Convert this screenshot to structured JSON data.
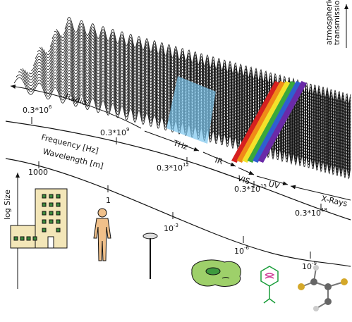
{
  "transmission_label": [
    "atmospheric",
    "transmission"
  ],
  "bands": [
    "Radio",
    "THz",
    "IR",
    "VIS",
    "UV",
    "X-Rays"
  ],
  "frequency_axis": {
    "title": "Frequency [Hz]",
    "ticks": [
      {
        "base": "0.3*10",
        "exp": "6"
      },
      {
        "base": "0.3*10",
        "exp": "9"
      },
      {
        "base": "0.3*10",
        "exp": "12"
      },
      {
        "base": "0.3*10",
        "exp": "15"
      },
      {
        "base": "0.3*10",
        "exp": "18"
      }
    ]
  },
  "wavelength_axis": {
    "title": "Wavelength [m]",
    "ticks": [
      {
        "base": "1000"
      },
      {
        "base": "1"
      },
      {
        "base": "10",
        "exp": "-3"
      },
      {
        "base": "10",
        "exp": "-6"
      },
      {
        "base": "10",
        "exp": "-9"
      }
    ]
  },
  "size_axis": "log Size"
}
